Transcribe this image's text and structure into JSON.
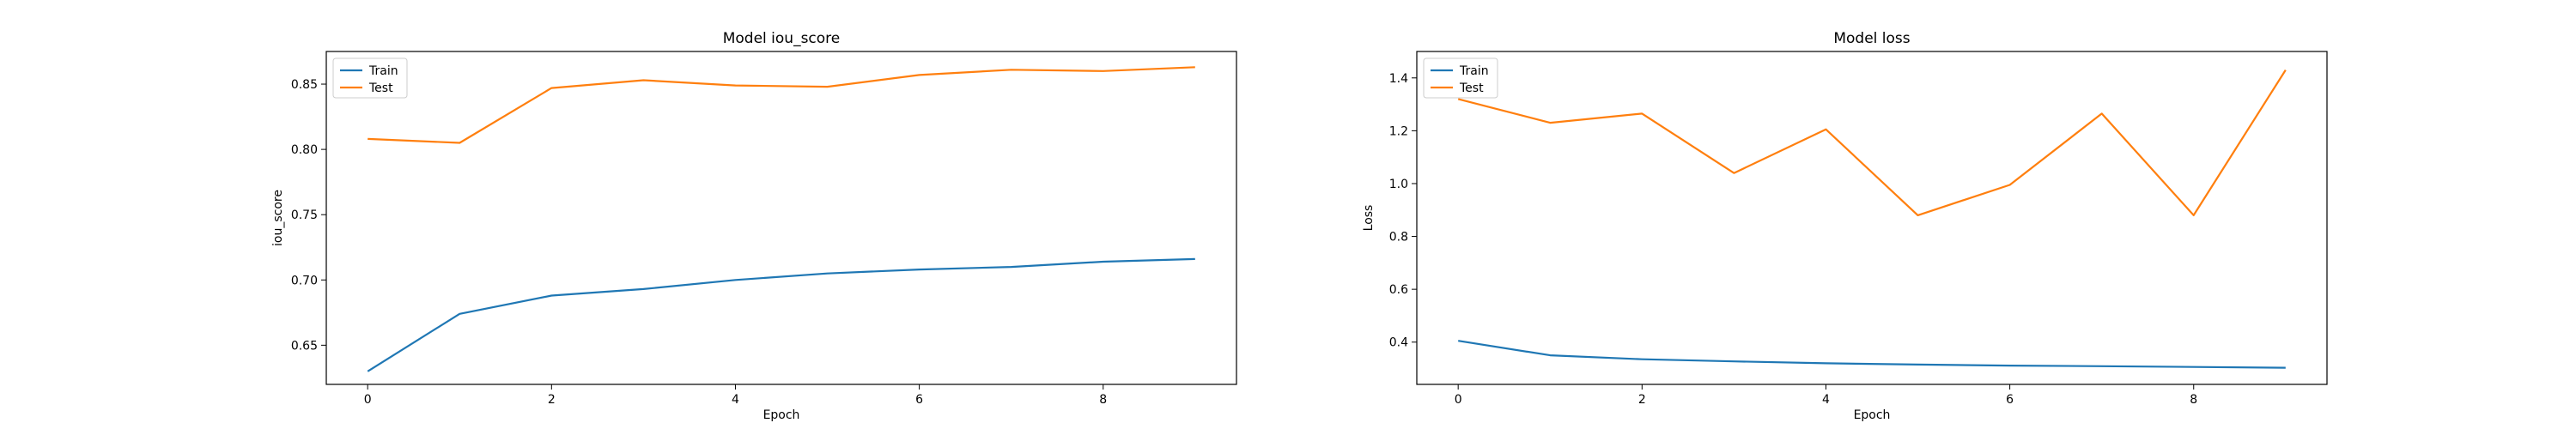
{
  "chart_data": [
    {
      "type": "line",
      "title": "Model iou_score",
      "xlabel": "Epoch",
      "ylabel": "iou_score",
      "x": [
        0,
        1,
        2,
        3,
        4,
        5,
        6,
        7,
        8,
        9
      ],
      "xlim": [
        -0.45,
        9.45
      ],
      "ylim": [
        0.62,
        0.875
      ],
      "xticks": [
        0,
        2,
        4,
        6,
        8
      ],
      "yticks": [
        0.65,
        0.7,
        0.75,
        0.8,
        0.85
      ],
      "ytick_labels": [
        "0.65",
        "0.70",
        "0.75",
        "0.80",
        "0.85"
      ],
      "legend_position": "upper-left",
      "series": [
        {
          "name": "Train",
          "color": "#1f77b4",
          "values": [
            0.63,
            0.674,
            0.688,
            0.693,
            0.7,
            0.705,
            0.708,
            0.71,
            0.714,
            0.716
          ]
        },
        {
          "name": "Test",
          "color": "#ff7f0e",
          "values": [
            0.808,
            0.805,
            0.847,
            0.853,
            0.849,
            0.848,
            0.857,
            0.861,
            0.86,
            0.863
          ]
        }
      ]
    },
    {
      "type": "line",
      "title": "Model loss",
      "xlabel": "Epoch",
      "ylabel": "Loss",
      "x": [
        0,
        1,
        2,
        3,
        4,
        5,
        6,
        7,
        8,
        9
      ],
      "xlim": [
        -0.45,
        9.45
      ],
      "ylim": [
        0.24,
        1.5
      ],
      "xticks": [
        0,
        2,
        4,
        6,
        8
      ],
      "yticks": [
        0.4,
        0.6,
        0.8,
        1.0,
        1.2,
        1.4
      ],
      "ytick_labels": [
        "0.4",
        "0.6",
        "0.8",
        "1.0",
        "1.2",
        "1.4"
      ],
      "legend_position": "upper-left",
      "series": [
        {
          "name": "Train",
          "color": "#1f77b4",
          "values": [
            0.405,
            0.35,
            0.335,
            0.327,
            0.32,
            0.315,
            0.311,
            0.309,
            0.306,
            0.303
          ]
        },
        {
          "name": "Test",
          "color": "#ff7f0e",
          "values": [
            1.32,
            1.23,
            1.265,
            1.04,
            1.205,
            0.88,
            0.995,
            1.265,
            0.88,
            1.43
          ]
        }
      ]
    }
  ]
}
